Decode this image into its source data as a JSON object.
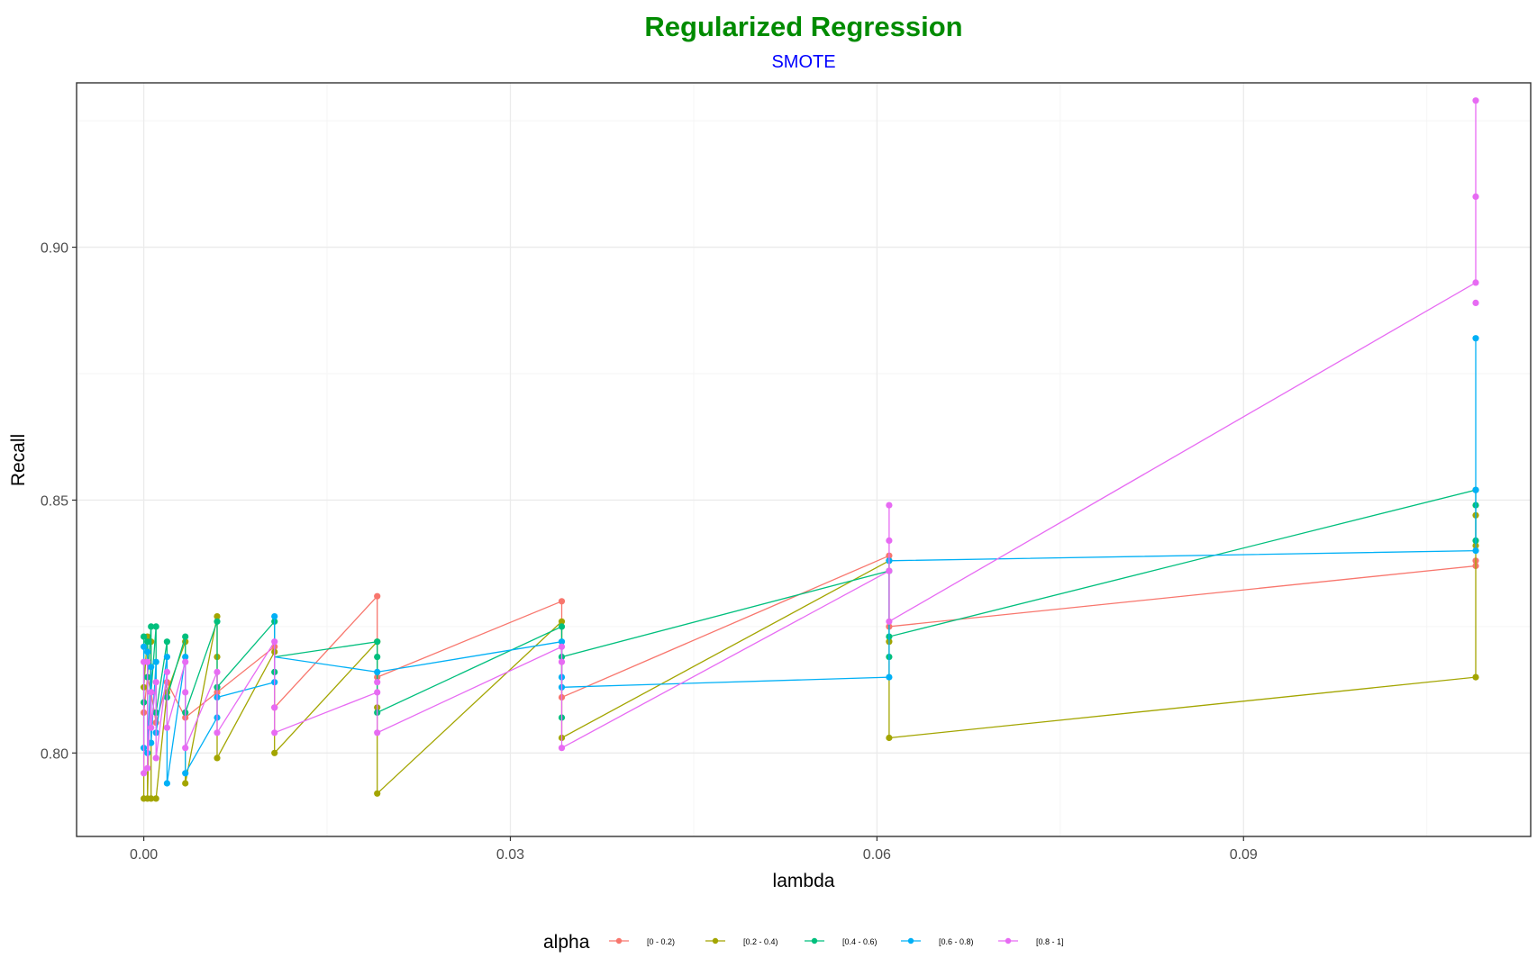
{
  "chart_data": {
    "type": "line",
    "title": "Regularized Regression",
    "subtitle": "SMOTE",
    "xlabel": "lambda",
    "ylabel": "Recall",
    "xlim": [
      -0.0055,
      0.1135
    ],
    "ylim": [
      0.7835,
      0.9325
    ],
    "x_ticks": [
      0.0,
      0.03,
      0.06,
      0.09
    ],
    "x_tick_labels": [
      "0.00",
      "0.03",
      "0.06",
      "0.09"
    ],
    "y_ticks": [
      0.8,
      0.85,
      0.9
    ],
    "y_tick_labels": [
      "0.80",
      "0.85",
      "0.90"
    ],
    "grid": true,
    "legend": {
      "title": "alpha",
      "position": "bottom"
    },
    "colors": {
      "title": "#008B00",
      "subtitle": "#0000FF",
      "panel_border": "#333333",
      "grid_major": "#EBEBEB",
      "grid_minor": "#F5F5F5"
    },
    "series": [
      {
        "name": "[0 - 0.2)",
        "color": "#F8766D",
        "points": [
          [
            0.0,
            0.808
          ],
          [
            0.0003,
            0.815
          ],
          [
            0.0006,
            0.812
          ],
          [
            0.001,
            0.806
          ],
          [
            0.0019,
            0.814
          ],
          [
            0.0034,
            0.807
          ],
          [
            0.006,
            0.812
          ],
          [
            0.0107,
            0.809
          ],
          [
            0.0107,
            0.821
          ],
          [
            0.0191,
            0.815
          ],
          [
            0.0191,
            0.831
          ],
          [
            0.0342,
            0.811
          ],
          [
            0.0342,
            0.83
          ],
          [
            0.061,
            0.825
          ],
          [
            0.061,
            0.839
          ],
          [
            0.109,
            0.837
          ],
          [
            0.109,
            0.838
          ]
        ],
        "path": [
          [
            0.0,
            0.808
          ],
          [
            0.0003,
            0.815
          ],
          [
            0.0006,
            0.812
          ],
          [
            0.001,
            0.806
          ],
          [
            0.0019,
            0.814
          ],
          [
            0.0034,
            0.807
          ],
          [
            0.006,
            0.812
          ],
          [
            0.0107,
            0.821
          ],
          [
            0.0107,
            0.809
          ],
          [
            0.0191,
            0.831
          ],
          [
            0.0191,
            0.815
          ],
          [
            0.0342,
            0.83
          ],
          [
            0.0342,
            0.811
          ],
          [
            0.061,
            0.839
          ],
          [
            0.061,
            0.825
          ],
          [
            0.109,
            0.837
          ],
          [
            0.109,
            0.838
          ]
        ]
      },
      {
        "name": "[0.2 - 0.4)",
        "color": "#A3A500",
        "points": [
          [
            0.0,
            0.791
          ],
          [
            0.0,
            0.813
          ],
          [
            0.0003,
            0.791
          ],
          [
            0.0003,
            0.823
          ],
          [
            0.0006,
            0.791
          ],
          [
            0.0006,
            0.822
          ],
          [
            0.001,
            0.791
          ],
          [
            0.0019,
            0.812
          ],
          [
            0.0034,
            0.794
          ],
          [
            0.0034,
            0.822
          ],
          [
            0.006,
            0.799
          ],
          [
            0.006,
            0.819
          ],
          [
            0.006,
            0.827
          ],
          [
            0.0107,
            0.8
          ],
          [
            0.0107,
            0.82
          ],
          [
            0.0191,
            0.792
          ],
          [
            0.0191,
            0.809
          ],
          [
            0.0191,
            0.822
          ],
          [
            0.0342,
            0.803
          ],
          [
            0.0342,
            0.826
          ],
          [
            0.061,
            0.803
          ],
          [
            0.061,
            0.822
          ],
          [
            0.061,
            0.838
          ],
          [
            0.109,
            0.815
          ],
          [
            0.109,
            0.841
          ],
          [
            0.109,
            0.847
          ]
        ],
        "path": [
          [
            0.0,
            0.791
          ],
          [
            0.0,
            0.813
          ],
          [
            0.0003,
            0.823
          ],
          [
            0.0003,
            0.791
          ],
          [
            0.0006,
            0.822
          ],
          [
            0.0006,
            0.791
          ],
          [
            0.001,
            0.791
          ],
          [
            0.0019,
            0.812
          ],
          [
            0.0034,
            0.822
          ],
          [
            0.0034,
            0.794
          ],
          [
            0.006,
            0.827
          ],
          [
            0.006,
            0.799
          ],
          [
            0.0107,
            0.82
          ],
          [
            0.0107,
            0.8
          ],
          [
            0.0191,
            0.822
          ],
          [
            0.0191,
            0.792
          ],
          [
            0.0342,
            0.826
          ],
          [
            0.0342,
            0.803
          ],
          [
            0.061,
            0.838
          ],
          [
            0.061,
            0.803
          ],
          [
            0.109,
            0.815
          ],
          [
            0.109,
            0.847
          ]
        ]
      },
      {
        "name": "[0.4 - 0.6)",
        "color": "#00BF7D",
        "points": [
          [
            0.0,
            0.81
          ],
          [
            0.0,
            0.823
          ],
          [
            0.0003,
            0.815
          ],
          [
            0.0003,
            0.822
          ],
          [
            0.0006,
            0.812
          ],
          [
            0.0006,
            0.825
          ],
          [
            0.001,
            0.808
          ],
          [
            0.001,
            0.825
          ],
          [
            0.0019,
            0.811
          ],
          [
            0.0019,
            0.822
          ],
          [
            0.0034,
            0.808
          ],
          [
            0.0034,
            0.823
          ],
          [
            0.006,
            0.813
          ],
          [
            0.006,
            0.826
          ],
          [
            0.0107,
            0.816
          ],
          [
            0.0107,
            0.826
          ],
          [
            0.0191,
            0.808
          ],
          [
            0.0191,
            0.819
          ],
          [
            0.0191,
            0.822
          ],
          [
            0.0342,
            0.807
          ],
          [
            0.0342,
            0.819
          ],
          [
            0.0342,
            0.825
          ],
          [
            0.061,
            0.819
          ],
          [
            0.061,
            0.823
          ],
          [
            0.061,
            0.836
          ],
          [
            0.109,
            0.842
          ],
          [
            0.109,
            0.849
          ],
          [
            0.109,
            0.852
          ]
        ],
        "path": [
          [
            0.0,
            0.81
          ],
          [
            0.0,
            0.823
          ],
          [
            0.0003,
            0.822
          ],
          [
            0.0003,
            0.815
          ],
          [
            0.0006,
            0.825
          ],
          [
            0.0006,
            0.812
          ],
          [
            0.001,
            0.825
          ],
          [
            0.001,
            0.808
          ],
          [
            0.0019,
            0.822
          ],
          [
            0.0019,
            0.811
          ],
          [
            0.0034,
            0.823
          ],
          [
            0.0034,
            0.808
          ],
          [
            0.006,
            0.826
          ],
          [
            0.006,
            0.813
          ],
          [
            0.0107,
            0.826
          ],
          [
            0.0107,
            0.819
          ],
          [
            0.0191,
            0.822
          ],
          [
            0.0191,
            0.808
          ],
          [
            0.0342,
            0.825
          ],
          [
            0.0342,
            0.819
          ],
          [
            0.061,
            0.836
          ],
          [
            0.061,
            0.823
          ],
          [
            0.109,
            0.852
          ],
          [
            0.109,
            0.842
          ]
        ]
      },
      {
        "name": "[0.6 - 0.8)",
        "color": "#00B0F6",
        "points": [
          [
            0.0,
            0.801
          ],
          [
            0.0,
            0.821
          ],
          [
            0.0003,
            0.8
          ],
          [
            0.0003,
            0.82
          ],
          [
            0.0006,
            0.802
          ],
          [
            0.0006,
            0.817
          ],
          [
            0.001,
            0.804
          ],
          [
            0.001,
            0.818
          ],
          [
            0.0019,
            0.794
          ],
          [
            0.0019,
            0.819
          ],
          [
            0.0034,
            0.796
          ],
          [
            0.0034,
            0.819
          ],
          [
            0.006,
            0.807
          ],
          [
            0.006,
            0.811
          ],
          [
            0.0107,
            0.814
          ],
          [
            0.0107,
            0.827
          ],
          [
            0.0191,
            0.816
          ],
          [
            0.0342,
            0.813
          ],
          [
            0.0342,
            0.815
          ],
          [
            0.0342,
            0.822
          ],
          [
            0.061,
            0.815
          ],
          [
            0.061,
            0.838
          ],
          [
            0.109,
            0.84
          ],
          [
            0.109,
            0.852
          ],
          [
            0.109,
            0.882
          ]
        ],
        "path": [
          [
            0.0,
            0.801
          ],
          [
            0.0,
            0.821
          ],
          [
            0.0003,
            0.82
          ],
          [
            0.0003,
            0.8
          ],
          [
            0.0006,
            0.817
          ],
          [
            0.0006,
            0.802
          ],
          [
            0.001,
            0.818
          ],
          [
            0.001,
            0.804
          ],
          [
            0.0019,
            0.819
          ],
          [
            0.0019,
            0.794
          ],
          [
            0.0034,
            0.819
          ],
          [
            0.0034,
            0.796
          ],
          [
            0.006,
            0.807
          ],
          [
            0.006,
            0.811
          ],
          [
            0.0107,
            0.814
          ],
          [
            0.0107,
            0.827
          ],
          [
            0.0107,
            0.819
          ],
          [
            0.0191,
            0.816
          ],
          [
            0.0342,
            0.822
          ],
          [
            0.0342,
            0.813
          ],
          [
            0.061,
            0.815
          ],
          [
            0.061,
            0.838
          ],
          [
            0.109,
            0.84
          ],
          [
            0.109,
            0.882
          ]
        ]
      },
      {
        "name": "[0.8 - 1]",
        "color": "#E76BF3",
        "points": [
          [
            0.0,
            0.796
          ],
          [
            0.0,
            0.818
          ],
          [
            0.0003,
            0.797
          ],
          [
            0.0003,
            0.818
          ],
          [
            0.0006,
            0.805
          ],
          [
            0.0006,
            0.812
          ],
          [
            0.001,
            0.799
          ],
          [
            0.001,
            0.814
          ],
          [
            0.0019,
            0.805
          ],
          [
            0.0019,
            0.816
          ],
          [
            0.0034,
            0.801
          ],
          [
            0.0034,
            0.812
          ],
          [
            0.0034,
            0.818
          ],
          [
            0.006,
            0.804
          ],
          [
            0.006,
            0.816
          ],
          [
            0.0107,
            0.804
          ],
          [
            0.0107,
            0.809
          ],
          [
            0.0107,
            0.822
          ],
          [
            0.0191,
            0.804
          ],
          [
            0.0191,
            0.812
          ],
          [
            0.0191,
            0.814
          ],
          [
            0.0342,
            0.801
          ],
          [
            0.0342,
            0.818
          ],
          [
            0.0342,
            0.821
          ],
          [
            0.061,
            0.826
          ],
          [
            0.061,
            0.836
          ],
          [
            0.061,
            0.842
          ],
          [
            0.061,
            0.849
          ],
          [
            0.109,
            0.889
          ],
          [
            0.109,
            0.893
          ],
          [
            0.109,
            0.91
          ],
          [
            0.109,
            0.929
          ]
        ],
        "path": [
          [
            0.0,
            0.796
          ],
          [
            0.0,
            0.818
          ],
          [
            0.0003,
            0.818
          ],
          [
            0.0003,
            0.797
          ],
          [
            0.0006,
            0.812
          ],
          [
            0.0006,
            0.805
          ],
          [
            0.001,
            0.814
          ],
          [
            0.001,
            0.799
          ],
          [
            0.0019,
            0.816
          ],
          [
            0.0019,
            0.805
          ],
          [
            0.0034,
            0.818
          ],
          [
            0.0034,
            0.801
          ],
          [
            0.006,
            0.816
          ],
          [
            0.006,
            0.804
          ],
          [
            0.0107,
            0.822
          ],
          [
            0.0107,
            0.804
          ],
          [
            0.0191,
            0.812
          ],
          [
            0.0191,
            0.804
          ],
          [
            0.0342,
            0.821
          ],
          [
            0.0342,
            0.801
          ],
          [
            0.061,
            0.836
          ],
          [
            0.061,
            0.849
          ],
          [
            0.061,
            0.826
          ],
          [
            0.109,
            0.893
          ],
          [
            0.109,
            0.929
          ]
        ]
      }
    ]
  }
}
